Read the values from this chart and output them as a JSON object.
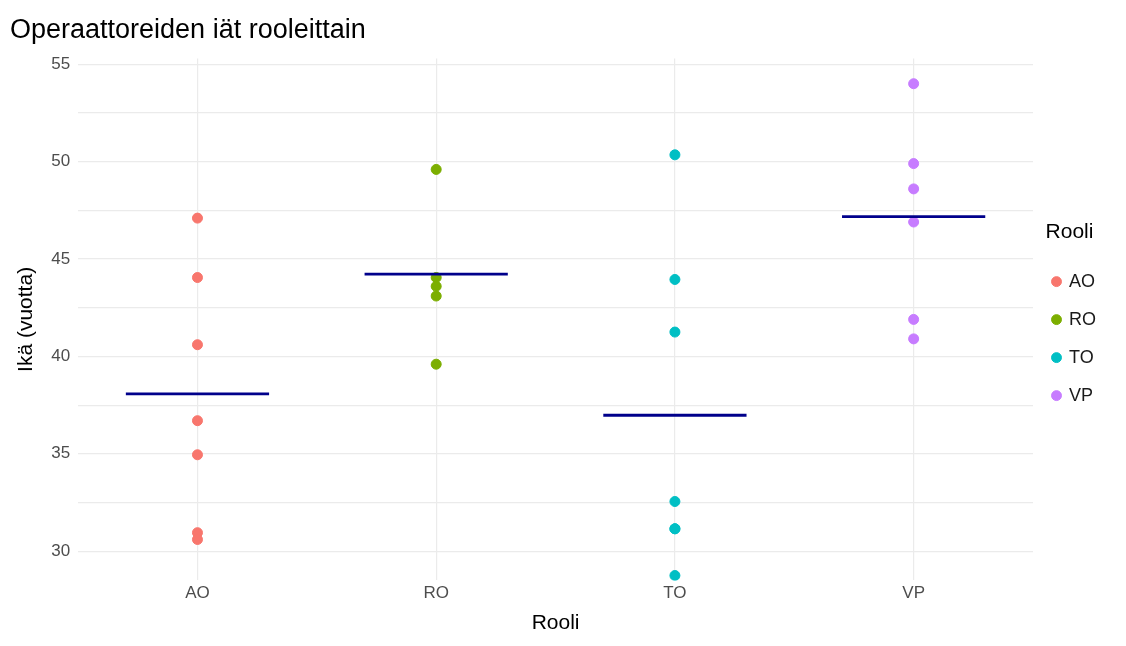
{
  "chart_data": {
    "type": "scatter",
    "title": "Operaattoreiden iät rooleittain",
    "xlabel": "Rooli",
    "ylabel": "Ikä (vuotta)",
    "legend_title": "Rooli",
    "legend": "right",
    "grid": true,
    "marker": "circle",
    "categories": [
      "AO",
      "RO",
      "TO",
      "VP"
    ],
    "ylim": [
      28.5,
      55.3
    ],
    "yticks": [
      {
        "value": 30,
        "label": "30"
      },
      {
        "value": 32.5,
        "label": null
      },
      {
        "value": 35,
        "label": "35"
      },
      {
        "value": 37.5,
        "label": null
      },
      {
        "value": 40,
        "label": "40"
      },
      {
        "value": 42.5,
        "label": null
      },
      {
        "value": 45,
        "label": "45"
      },
      {
        "value": 47.5,
        "label": null
      },
      {
        "value": 50,
        "label": "50"
      },
      {
        "value": 52.5,
        "label": null
      },
      {
        "value": 55,
        "label": "55"
      }
    ],
    "series": [
      {
        "name": "AO",
        "color": "#f8766d",
        "x": [
          "AO",
          "AO",
          "AO",
          "AO",
          "AO",
          "AO",
          "AO"
        ],
        "values": [
          47.1,
          44.05,
          40.6,
          36.7,
          34.95,
          30.95,
          30.6
        ]
      },
      {
        "name": "RO",
        "color": "#7cae00",
        "x": [
          "RO",
          "RO",
          "RO",
          "RO",
          "RO"
        ],
        "values": [
          49.6,
          44.05,
          43.6,
          43.1,
          39.6
        ]
      },
      {
        "name": "TO",
        "color": "#00bfc4",
        "x": [
          "TO",
          "TO",
          "TO",
          "TO",
          "TO",
          "TO",
          "TO"
        ],
        "values": [
          50.35,
          43.95,
          41.25,
          32.55,
          31.15,
          31.15,
          28.75
        ]
      },
      {
        "name": "VP",
        "color": "#c77cff",
        "x": [
          "VP",
          "VP",
          "VP",
          "VP",
          "VP",
          "VP"
        ],
        "values": [
          54.0,
          49.9,
          48.6,
          46.9,
          41.9,
          40.9
        ]
      },
      {
        "type": "bar",
        "color": "#00008b",
        "x": [
          "AO",
          "RO",
          "TO",
          "VP"
        ],
        "base": [
          38.0,
          44.15,
          36.9,
          47.1
        ],
        "values": [
          0.15,
          0.15,
          0.15,
          0.15
        ]
      }
    ]
  }
}
